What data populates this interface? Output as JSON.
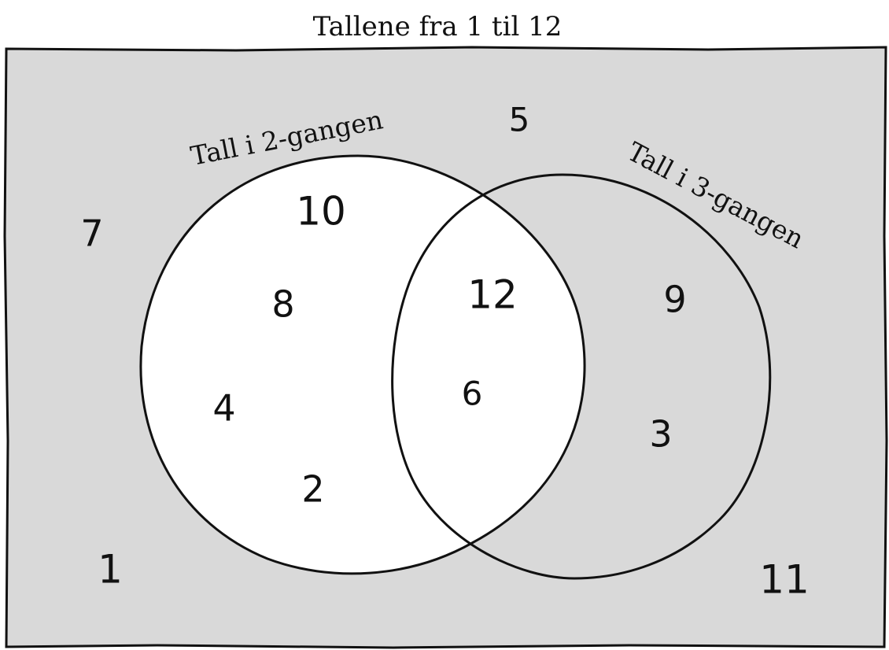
{
  "title": "Tallene fra 1 til 12",
  "sets": {
    "a": {
      "label": "Tall i 2-gangen",
      "only": [
        "10",
        "8",
        "4",
        "2"
      ]
    },
    "b": {
      "label": "Tall i 3-gangen",
      "only": [
        "9",
        "3"
      ]
    },
    "both": [
      "12",
      "6"
    ],
    "neither": [
      "5",
      "7",
      "1",
      "11"
    ]
  },
  "colors": {
    "universe_fill": "#d9d9d9",
    "circle_fill": "#ffffff",
    "stroke": "#111111"
  }
}
